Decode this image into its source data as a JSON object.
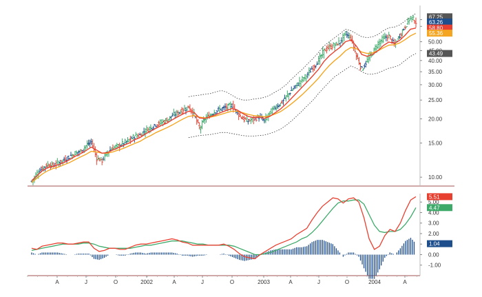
{
  "chart_data": [
    {
      "type": "ohlc",
      "panel": "price",
      "y_scale": "log",
      "ylim": [
        9.0,
        72.0
      ],
      "y_ticks": [
        "10.00",
        "15.00",
        "20.00",
        "25.00",
        "30.00",
        "35.00",
        "40.00",
        "45.00",
        "50.00",
        "60.00",
        "65.00"
      ],
      "y_tick_values": [
        10,
        15,
        20,
        25,
        30,
        35,
        40,
        45,
        50,
        60,
        65
      ],
      "grid": false,
      "legend": "none",
      "x_ticks": [
        "A",
        "J",
        "O",
        "2002",
        "A",
        "J",
        "O",
        "2003",
        "A",
        "J",
        "O",
        "2004",
        "A"
      ],
      "last_value_tags": [
        {
          "text": "67.25",
          "value": 67.25,
          "color": "#555555"
        },
        {
          "text": "63.26",
          "value": 63.26,
          "color": "#1f4e8c"
        },
        {
          "text": "58.80",
          "value": 58.8,
          "color": "#e84030"
        },
        {
          "text": "55.36",
          "value": 55.36,
          "color": "#f4a623"
        },
        {
          "text": "43.49",
          "value": 43.49,
          "color": "#555555"
        }
      ],
      "colors": {
        "up": "#3daa6a",
        "down": "#e84030",
        "neutral": "#1f4e8c",
        "fast_ma": "#e84030",
        "slow_ma": "#f4a623",
        "band": "#333333"
      },
      "series": [
        {
          "role": "close",
          "values": [
            9.5,
            10.5,
            11.2,
            11.6,
            11.5,
            11.9,
            12.3,
            12.8,
            13.3,
            13.6,
            14.5,
            15.2,
            12.5,
            12.2,
            13.5,
            14.2,
            14.5,
            15.0,
            15.5,
            16.3,
            16.5,
            17.5,
            18.0,
            18.8,
            19.2,
            19.8,
            20.8,
            21.5,
            22.3,
            23.0,
            21.0,
            17.8,
            20.0,
            21.0,
            22.0,
            22.5,
            23.0,
            23.5,
            21.5,
            20.0,
            19.5,
            20.0,
            20.5,
            19.5,
            21.5,
            23.0,
            24.0,
            26.0,
            28.0,
            30.0,
            32.0,
            34.0,
            37.0,
            40.0,
            45.0,
            47.0,
            48.0,
            50.0,
            55.0,
            52.0,
            42.0,
            36.0,
            40.0,
            44.0,
            49.0,
            52.0,
            53.5,
            48.0,
            54.0,
            60.0,
            67.0,
            63.26
          ]
        },
        {
          "role": "fast_ma",
          "values": [
            9.6,
            10.2,
            10.8,
            11.2,
            11.4,
            11.6,
            11.9,
            12.3,
            12.8,
            13.2,
            13.7,
            14.3,
            13.8,
            13.3,
            13.4,
            13.8,
            14.2,
            14.6,
            15.0,
            15.6,
            16.0,
            16.7,
            17.3,
            17.9,
            18.5,
            19.0,
            19.8,
            20.5,
            21.2,
            21.9,
            21.6,
            20.2,
            20.1,
            20.5,
            21.0,
            21.6,
            22.1,
            22.6,
            22.2,
            21.3,
            20.6,
            20.3,
            20.4,
            20.1,
            20.6,
            21.5,
            22.5,
            23.9,
            25.5,
            27.3,
            29.2,
            31.2,
            33.5,
            36.0,
            39.5,
            42.3,
            44.6,
            46.8,
            50.0,
            51.0,
            47.5,
            43.0,
            42.0,
            43.0,
            45.0,
            47.8,
            49.8,
            49.0,
            50.8,
            54.0,
            58.0,
            58.8
          ]
        },
        {
          "role": "slow_ma",
          "values": [
            9.4,
            9.9,
            10.4,
            10.8,
            11.1,
            11.3,
            11.6,
            11.9,
            12.3,
            12.7,
            13.1,
            13.6,
            13.5,
            13.3,
            13.3,
            13.5,
            13.8,
            14.1,
            14.5,
            14.9,
            15.3,
            15.9,
            16.4,
            17.0,
            17.5,
            18.0,
            18.6,
            19.3,
            20.0,
            20.6,
            20.8,
            20.4,
            20.2,
            20.4,
            20.7,
            21.1,
            21.5,
            21.9,
            21.9,
            21.5,
            21.1,
            20.8,
            20.7,
            20.5,
            20.7,
            21.2,
            21.8,
            22.8,
            23.9,
            25.2,
            26.7,
            28.4,
            30.3,
            32.4,
            35.1,
            37.7,
            40.0,
            42.2,
            44.9,
            46.7,
            46.0,
            44.2,
            43.5,
            43.8,
            44.9,
            46.5,
            48.0,
            48.2,
            49.3,
            51.2,
            53.6,
            55.36
          ]
        },
        {
          "role": "upper_band",
          "values": [
            null,
            null,
            null,
            null,
            null,
            null,
            null,
            null,
            null,
            null,
            null,
            null,
            null,
            null,
            null,
            null,
            null,
            null,
            null,
            null,
            null,
            null,
            null,
            null,
            null,
            null,
            null,
            null,
            null,
            26.0,
            26.3,
            26.5,
            26.8,
            27.0,
            27.5,
            28.0,
            27.5,
            26.5,
            25.5,
            25.0,
            25.0,
            25.3,
            25.5,
            25.8,
            26.5,
            27.5,
            28.5,
            30.0,
            32.0,
            34.0,
            36.0,
            38.5,
            41.0,
            44.0,
            47.5,
            50.0,
            52.5,
            55.0,
            58.0,
            57.0,
            55.0,
            53.0,
            52.5,
            53.0,
            54.5,
            57.0,
            59.0,
            59.5,
            61.0,
            64.0,
            67.0,
            70.0
          ]
        },
        {
          "role": "lower_band",
          "values": [
            null,
            null,
            null,
            null,
            null,
            null,
            null,
            null,
            null,
            null,
            null,
            null,
            null,
            null,
            null,
            null,
            null,
            null,
            null,
            null,
            null,
            null,
            null,
            null,
            null,
            null,
            null,
            null,
            null,
            16.0,
            16.2,
            16.4,
            16.5,
            16.6,
            16.8,
            17.0,
            17.0,
            16.8,
            16.6,
            16.4,
            16.3,
            16.3,
            16.4,
            16.5,
            16.8,
            17.2,
            17.7,
            18.5,
            19.5,
            20.7,
            22.0,
            23.5,
            25.0,
            27.0,
            29.0,
            31.0,
            33.0,
            34.5,
            36.0,
            37.5,
            36.5,
            35.0,
            34.0,
            34.0,
            34.5,
            35.5,
            36.5,
            37.0,
            38.0,
            40.0,
            42.0,
            43.49
          ]
        }
      ]
    },
    {
      "type": "line+bar",
      "panel": "macd",
      "ylim": [
        -2.0,
        5.8
      ],
      "y_ticks": [
        "-1.00",
        "0.00",
        "1.00",
        "2.00",
        "3.00",
        "4.00",
        "5.00"
      ],
      "y_tick_values": [
        -1,
        0,
        1,
        2,
        3,
        4,
        5
      ],
      "grid": false,
      "legend": "none",
      "last_value_tags": [
        {
          "text": "5.51",
          "value": 5.51,
          "color": "#e84030"
        },
        {
          "text": "4.47",
          "value": 4.47,
          "color": "#3daa6a"
        },
        {
          "text": "1.04",
          "value": 1.04,
          "color": "#1f4e8c"
        }
      ],
      "colors": {
        "macd": "#e84030",
        "signal": "#3daa6a",
        "histogram": "#1f4e8c"
      },
      "series": [
        {
          "role": "macd",
          "values": [
            0.6,
            0.5,
            0.8,
            0.9,
            1.0,
            1.1,
            1.1,
            1.0,
            1.0,
            1.1,
            1.2,
            1.2,
            0.6,
            0.3,
            0.4,
            0.6,
            0.6,
            0.5,
            0.5,
            0.7,
            0.9,
            1.0,
            1.0,
            1.1,
            1.2,
            1.3,
            1.4,
            1.5,
            1.4,
            1.2,
            1.1,
            0.9,
            0.9,
            0.9,
            0.9,
            0.9,
            0.9,
            1.0,
            0.8,
            0.5,
            0.1,
            -0.2,
            -0.3,
            -0.4,
            0.0,
            0.3,
            0.6,
            0.9,
            1.1,
            1.3,
            1.5,
            1.9,
            2.2,
            2.5,
            3.3,
            4.0,
            4.6,
            5.0,
            5.4,
            5.3,
            4.9,
            5.3,
            5.4,
            5.0,
            3.5,
            1.5,
            0.5,
            0.8,
            1.8,
            2.4,
            2.2,
            3.0,
            4.2,
            5.2,
            5.51
          ]
        },
        {
          "role": "signal",
          "values": [
            0.4,
            0.5,
            0.6,
            0.7,
            0.8,
            0.9,
            1.0,
            1.0,
            1.0,
            1.0,
            1.1,
            1.1,
            1.0,
            0.8,
            0.7,
            0.6,
            0.6,
            0.6,
            0.6,
            0.6,
            0.7,
            0.8,
            0.9,
            0.9,
            1.0,
            1.1,
            1.2,
            1.3,
            1.3,
            1.3,
            1.2,
            1.1,
            1.0,
            1.0,
            0.9,
            0.9,
            0.9,
            0.9,
            0.9,
            0.8,
            0.6,
            0.4,
            0.2,
            0.0,
            0.0,
            0.1,
            0.2,
            0.4,
            0.6,
            0.8,
            1.0,
            1.2,
            1.5,
            1.7,
            2.1,
            2.6,
            3.2,
            3.8,
            4.4,
            4.9,
            5.1,
            5.1,
            5.2,
            5.2,
            4.8,
            3.8,
            2.8,
            2.2,
            2.1,
            2.2,
            2.2,
            2.4,
            2.9,
            3.6,
            4.47
          ]
        },
        {
          "role": "histogram",
          "values": [
            0.2,
            0.0,
            0.2,
            0.2,
            0.2,
            0.2,
            0.1,
            0.0,
            0.0,
            0.1,
            0.1,
            0.1,
            -0.4,
            -0.5,
            -0.3,
            0.0,
            0.0,
            -0.1,
            -0.1,
            0.1,
            0.2,
            0.2,
            0.1,
            0.2,
            0.2,
            0.2,
            0.2,
            0.2,
            0.1,
            -0.1,
            -0.1,
            -0.2,
            -0.1,
            -0.1,
            0.0,
            0.0,
            0.0,
            0.1,
            -0.1,
            -0.3,
            -0.5,
            -0.6,
            -0.5,
            -0.4,
            0.0,
            0.2,
            0.4,
            0.5,
            0.5,
            0.5,
            0.5,
            0.7,
            0.7,
            0.8,
            1.2,
            1.4,
            1.4,
            1.2,
            1.0,
            0.4,
            -0.2,
            0.2,
            0.2,
            -0.2,
            -1.3,
            -2.3,
            -2.3,
            -1.4,
            -0.3,
            0.2,
            0.0,
            0.6,
            1.3,
            1.6,
            1.04
          ]
        }
      ]
    }
  ]
}
